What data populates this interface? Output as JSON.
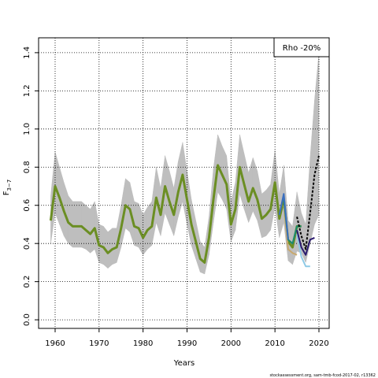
{
  "chart_data": {
    "type": "line",
    "xlabel": "Years",
    "ylabel": "F",
    "ylabel_sub": "3−7",
    "annotation": "Rho -20%",
    "footer": "stockassessment.org, sam-tmb-fcod-2017-02, r13362",
    "xlim": [
      1956.24,
      2022.33
    ],
    "ylim": [
      -0.045,
      1.478
    ],
    "xticks": [
      1960,
      1970,
      1980,
      1990,
      2000,
      2010,
      2020
    ],
    "yticks": [
      {
        "value": 0,
        "label": "0.0"
      },
      0.2,
      0.4,
      0.6,
      0.8,
      {
        "value": 1,
        "label": "1.0"
      },
      1.2,
      1.4
    ],
    "grid": true,
    "band": {
      "color": "#bebebe",
      "x": [
        1959,
        1960,
        1961,
        1962,
        1963,
        1964,
        1965,
        1966,
        1967,
        1968,
        1969,
        1970,
        1971,
        1972,
        1973,
        1974,
        1975,
        1976,
        1977,
        1978,
        1979,
        1980,
        1981,
        1982,
        1983,
        1984,
        1985,
        1986,
        1987,
        1988,
        1989,
        1990,
        1991,
        1992,
        1993,
        1994,
        1995,
        1996,
        1997,
        1998,
        1999,
        2000,
        2001,
        2002,
        2003,
        2004,
        2005,
        2006,
        2007,
        2008,
        2009,
        2010,
        2011,
        2012,
        2013,
        2014,
        2015,
        2016,
        2017,
        2018,
        2019,
        2020
      ],
      "lower": [
        0.4,
        0.56,
        0.5,
        0.44,
        0.4,
        0.38,
        0.38,
        0.38,
        0.37,
        0.35,
        0.37,
        0.3,
        0.29,
        0.27,
        0.29,
        0.3,
        0.38,
        0.48,
        0.46,
        0.39,
        0.38,
        0.34,
        0.37,
        0.39,
        0.51,
        0.44,
        0.56,
        0.5,
        0.44,
        0.54,
        0.62,
        0.5,
        0.39,
        0.32,
        0.25,
        0.24,
        0.34,
        0.51,
        0.67,
        0.63,
        0.58,
        0.41,
        0.47,
        0.66,
        0.58,
        0.51,
        0.57,
        0.52,
        0.43,
        0.44,
        0.47,
        0.59,
        0.43,
        0.51,
        0.31,
        0.29,
        0.36,
        0.35,
        0.3,
        0.4,
        0.5,
        0.55
      ],
      "upper": [
        0.65,
        0.88,
        0.8,
        0.72,
        0.65,
        0.62,
        0.62,
        0.62,
        0.6,
        0.58,
        0.62,
        0.5,
        0.49,
        0.46,
        0.48,
        0.48,
        0.6,
        0.74,
        0.72,
        0.62,
        0.61,
        0.55,
        0.59,
        0.62,
        0.8,
        0.69,
        0.86,
        0.78,
        0.69,
        0.83,
        0.93,
        0.78,
        0.63,
        0.52,
        0.41,
        0.38,
        0.54,
        0.79,
        0.97,
        0.91,
        0.86,
        0.62,
        0.72,
        0.97,
        0.87,
        0.77,
        0.85,
        0.78,
        0.66,
        0.68,
        0.71,
        0.89,
        0.66,
        0.81,
        0.52,
        0.49,
        0.67,
        0.56,
        0.5,
        0.85,
        1.15,
        1.4
      ]
    },
    "series": [
      {
        "color": "#6b8e23",
        "width": 3,
        "x": [
          1959,
          1960,
          1961,
          1962,
          1963,
          1964,
          1965,
          1966,
          1967,
          1968,
          1969,
          1970,
          1971,
          1972,
          1973,
          1974,
          1975,
          1976,
          1977,
          1978,
          1979,
          1980,
          1981,
          1982,
          1983,
          1984,
          1985,
          1986,
          1987,
          1988,
          1989,
          1990,
          1991,
          1992,
          1993,
          1994,
          1995,
          1996,
          1997,
          1998,
          1999,
          2000,
          2001,
          2002,
          2003,
          2004,
          2005,
          2006,
          2007,
          2008,
          2009,
          2010,
          2011,
          2012,
          2013,
          2014,
          2015,
          2016
        ],
        "values": [
          0.52,
          0.7,
          0.64,
          0.57,
          0.51,
          0.49,
          0.49,
          0.49,
          0.47,
          0.45,
          0.48,
          0.39,
          0.38,
          0.35,
          0.37,
          0.38,
          0.48,
          0.6,
          0.58,
          0.49,
          0.48,
          0.43,
          0.47,
          0.49,
          0.64,
          0.55,
          0.7,
          0.62,
          0.55,
          0.67,
          0.76,
          0.63,
          0.5,
          0.41,
          0.32,
          0.3,
          0.43,
          0.63,
          0.81,
          0.76,
          0.71,
          0.5,
          0.58,
          0.8,
          0.71,
          0.62,
          0.69,
          0.63,
          0.53,
          0.55,
          0.58,
          0.72,
          0.53,
          0.63,
          0.41,
          0.38,
          0.49,
          0.49
        ]
      },
      {
        "color": "#c8a96e",
        "width": 2,
        "x": [
          2012,
          2013,
          2014,
          2015
        ],
        "values": [
          0.6,
          0.37,
          0.35,
          0.34
        ]
      },
      {
        "color": "#1a8a6e",
        "width": 2,
        "x": [
          2012,
          2013,
          2014,
          2015,
          2016
        ],
        "values": [
          0.63,
          0.42,
          0.4,
          0.49,
          0.49
        ]
      },
      {
        "color": "#3a6fbf",
        "width": 2,
        "x": [
          2011,
          2012,
          2013
        ],
        "values": [
          0.55,
          0.66,
          0.42
        ]
      },
      {
        "color": "#8ecae6",
        "width": 2,
        "x": [
          2015,
          2016,
          2017,
          2018
        ],
        "values": [
          0.45,
          0.33,
          0.28,
          0.28
        ]
      },
      {
        "color": "#2b1a6e",
        "width": 2,
        "x": [
          2015,
          2016,
          2017,
          2018,
          2019
        ],
        "values": [
          0.47,
          0.38,
          0.34,
          0.42,
          0.43
        ]
      },
      {
        "color": "#000000",
        "width": 2,
        "dash": true,
        "x": [
          2015,
          2016,
          2017,
          2018,
          2019,
          2020
        ],
        "values": [
          0.54,
          0.44,
          0.37,
          0.56,
          0.76,
          0.86
        ]
      }
    ]
  }
}
